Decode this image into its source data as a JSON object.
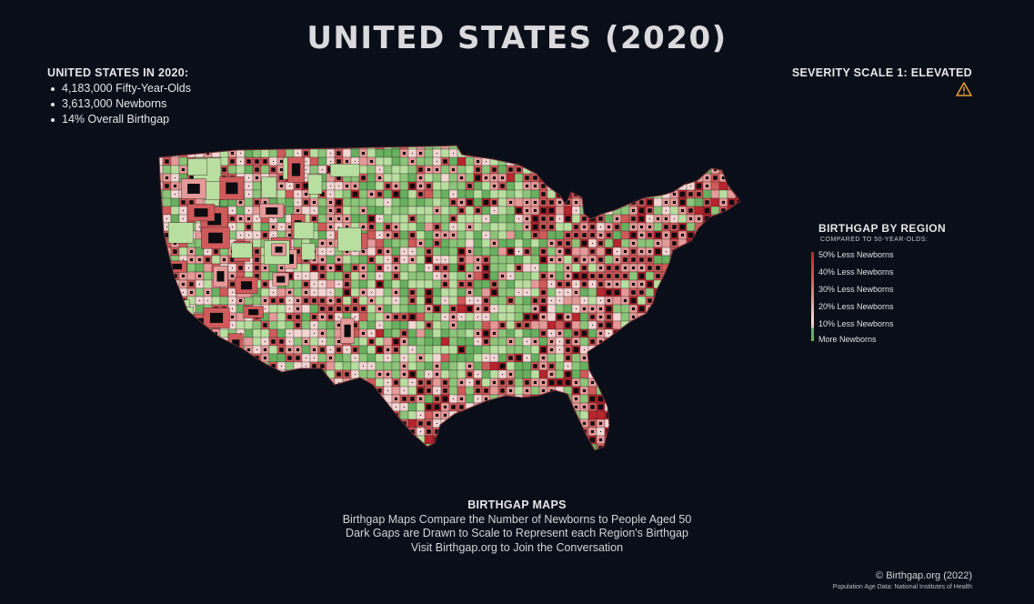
{
  "title": "UNITED STATES (2020)",
  "summary": {
    "heading": "UNITED STATES IN 2020:",
    "items": [
      "4,183,000 Fifty-Year-Olds",
      "3,613,000 Newborns",
      "14% Overall Birthgap"
    ]
  },
  "severity": {
    "label": "SEVERITY SCALE 1: ELEVATED",
    "icon": "warning-triangle-icon",
    "icon_color": "#e9a12a"
  },
  "legend": {
    "title": "BIRTHGAP BY REGION",
    "subtitle": "COMPARED TO 50-YEAR-OLDS:",
    "items": [
      {
        "label": "50% Less Newborns",
        "color": "#b8252e"
      },
      {
        "label": "40% Less Newborns",
        "color": "#cf5a5a"
      },
      {
        "label": "30% Less Newborns",
        "color": "#e49a98"
      },
      {
        "label": "20% Less Newborns",
        "color": "#f3d6d3"
      },
      {
        "label": "10% Less Newborns",
        "color": "#f7e6e2"
      },
      {
        "label": "More Newborns",
        "color": "#68b060"
      }
    ]
  },
  "footer": {
    "heading": "BIRTHGAP MAPS",
    "lines": [
      "Birthgap Maps Compare the Number of Newborns to People Aged 50",
      "Dark Gaps are Drawn to Scale to Represent each Region's Birthgap",
      "Visit Birthgap.org to Join the Conversation"
    ]
  },
  "credit": {
    "copyright": "© Birthgap.org (2022)",
    "source": "Population Age Data: National Institutes of Health"
  },
  "colors": {
    "background": "#090e18",
    "gap": "#0b0b10",
    "red_strong": "#b8252e",
    "red_mid": "#cf5a5a",
    "pink": "#e49a98",
    "pale_pink": "#f3d6d3",
    "green_light": "#b9dfa0",
    "green_mid": "#8cc57a",
    "green_dark": "#68b060"
  }
}
